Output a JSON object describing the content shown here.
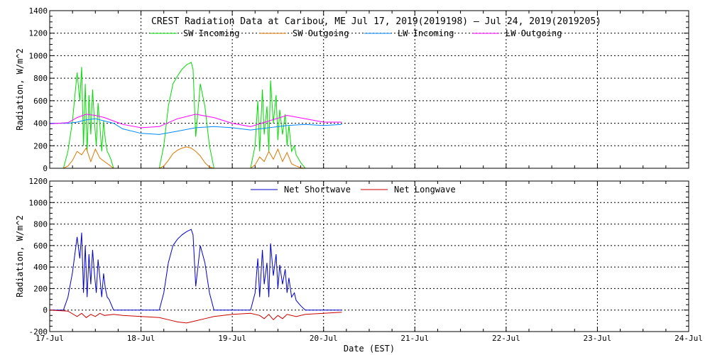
{
  "title": "CREST Radiation Data at Caribou, ME   Jul 17, 2019(2019198) — Jul 24, 2019(2019205)",
  "xlabel": "Date (EST)",
  "chart_data": [
    {
      "type": "line",
      "title": "CREST Radiation Data at Caribou, ME   Jul 17, 2019(2019198) — Jul 24, 2019(2019205)",
      "ylabel": "Radiation, W/m^2",
      "xlim": [
        0,
        7
      ],
      "ylim": [
        0,
        1400
      ],
      "yticks": [
        0,
        200,
        400,
        600,
        800,
        1000,
        1200,
        1400
      ],
      "grid": true,
      "legend": "top",
      "series": [
        {
          "name": "SW Incoming",
          "color": "#00dd00",
          "x": [
            0.0,
            0.15,
            0.2,
            0.25,
            0.3,
            0.33,
            0.35,
            0.37,
            0.39,
            0.41,
            0.43,
            0.45,
            0.47,
            0.49,
            0.51,
            0.53,
            0.55,
            0.57,
            0.59,
            0.61,
            0.63,
            0.65,
            0.67,
            0.7,
            0.75,
            0.8,
            0.85,
            1.0,
            1.2,
            1.25,
            1.3,
            1.35,
            1.4,
            1.45,
            1.5,
            1.55,
            1.57,
            1.6,
            1.65,
            1.7,
            1.75,
            1.8,
            2.0,
            2.2,
            2.25,
            2.28,
            2.3,
            2.33,
            2.35,
            2.38,
            2.4,
            2.42,
            2.45,
            2.48,
            2.5,
            2.52,
            2.55,
            2.58,
            2.6,
            2.62,
            2.65,
            2.68,
            2.7,
            2.75,
            2.8,
            2.85,
            3.0,
            3.2
          ],
          "values": [
            0,
            0,
            150,
            420,
            850,
            600,
            900,
            200,
            750,
            150,
            650,
            300,
            700,
            420,
            200,
            580,
            380,
            150,
            420,
            250,
            150,
            120,
            80,
            0,
            0,
            0,
            0,
            0,
            0,
            200,
            550,
            750,
            820,
            880,
            920,
            940,
            880,
            280,
            750,
            550,
            200,
            0,
            0,
            0,
            200,
            600,
            150,
            700,
            300,
            550,
            150,
            780,
            400,
            650,
            250,
            520,
            300,
            480,
            200,
            380,
            150,
            200,
            120,
            50,
            0,
            0,
            0,
            0
          ]
        },
        {
          "name": "SW Outgoing",
          "color": "#dd7700",
          "x": [
            0.0,
            0.15,
            0.2,
            0.25,
            0.3,
            0.35,
            0.4,
            0.45,
            0.5,
            0.55,
            0.6,
            0.65,
            0.7,
            1.0,
            1.2,
            1.25,
            1.3,
            1.35,
            1.4,
            1.45,
            1.5,
            1.55,
            1.6,
            1.65,
            1.7,
            1.75,
            1.8,
            2.0,
            2.2,
            2.25,
            2.3,
            2.35,
            2.4,
            2.45,
            2.5,
            2.55,
            2.6,
            2.65,
            2.7,
            2.75,
            2.8,
            3.2
          ],
          "values": [
            0,
            0,
            20,
            70,
            150,
            120,
            180,
            60,
            170,
            90,
            60,
            30,
            0,
            0,
            0,
            20,
            70,
            130,
            160,
            180,
            190,
            180,
            150,
            110,
            50,
            10,
            0,
            0,
            0,
            30,
            100,
            60,
            150,
            80,
            170,
            60,
            140,
            40,
            20,
            5,
            0,
            0
          ]
        },
        {
          "name": "LW Incoming",
          "color": "#0088ff",
          "x": [
            0.0,
            0.2,
            0.3,
            0.4,
            0.5,
            0.6,
            0.7,
            0.8,
            1.0,
            1.2,
            1.4,
            1.6,
            1.8,
            2.0,
            2.2,
            2.4,
            2.6,
            2.8,
            3.0,
            3.2
          ],
          "values": [
            400,
            400,
            410,
            430,
            440,
            420,
            400,
            350,
            310,
            300,
            330,
            360,
            370,
            360,
            340,
            360,
            380,
            390,
            380,
            390
          ]
        },
        {
          "name": "LW Outgoing",
          "color": "#ff00ff",
          "x": [
            0.0,
            0.2,
            0.3,
            0.4,
            0.5,
            0.6,
            0.7,
            0.8,
            1.0,
            1.2,
            1.4,
            1.6,
            1.8,
            2.0,
            2.2,
            2.4,
            2.6,
            2.8,
            3.0,
            3.2
          ],
          "values": [
            395,
            405,
            450,
            480,
            470,
            450,
            420,
            390,
            360,
            370,
            440,
            480,
            450,
            400,
            370,
            420,
            470,
            440,
            410,
            410
          ]
        }
      ]
    },
    {
      "type": "line",
      "ylabel": "Radiation, W/m^2",
      "xlabel": "Date (EST)",
      "xlim": [
        0,
        7
      ],
      "ylim": [
        -200,
        1200
      ],
      "yticks": [
        -200,
        0,
        200,
        400,
        600,
        800,
        1000,
        1200
      ],
      "xticks": [
        "17-Jul",
        "18-Jul",
        "19-Jul",
        "20-Jul",
        "21-Jul",
        "22-Jul",
        "23-Jul",
        "24-Jul"
      ],
      "grid": true,
      "legend": "top",
      "series": [
        {
          "name": "Net Shortwave",
          "color": "#0000cc",
          "x": [
            0.0,
            0.15,
            0.2,
            0.25,
            0.3,
            0.33,
            0.35,
            0.37,
            0.39,
            0.41,
            0.43,
            0.45,
            0.47,
            0.49,
            0.51,
            0.53,
            0.55,
            0.57,
            0.59,
            0.61,
            0.63,
            0.65,
            0.67,
            0.7,
            0.75,
            0.8,
            1.0,
            1.2,
            1.25,
            1.3,
            1.35,
            1.4,
            1.45,
            1.5,
            1.55,
            1.57,
            1.6,
            1.65,
            1.7,
            1.75,
            1.8,
            2.0,
            2.2,
            2.25,
            2.28,
            2.3,
            2.33,
            2.35,
            2.38,
            2.4,
            2.42,
            2.45,
            2.48,
            2.5,
            2.52,
            2.55,
            2.58,
            2.6,
            2.62,
            2.65,
            2.68,
            2.7,
            2.75,
            2.8,
            3.0,
            3.2
          ],
          "values": [
            0,
            0,
            120,
            350,
            680,
            480,
            720,
            160,
            600,
            120,
            520,
            240,
            560,
            340,
            160,
            470,
            300,
            120,
            340,
            200,
            120,
            100,
            60,
            0,
            0,
            0,
            0,
            0,
            160,
            440,
            600,
            660,
            700,
            730,
            750,
            700,
            220,
            600,
            440,
            160,
            0,
            0,
            0,
            160,
            480,
            120,
            560,
            240,
            440,
            120,
            620,
            320,
            520,
            200,
            420,
            240,
            380,
            160,
            300,
            120,
            160,
            90,
            40,
            0,
            0,
            0
          ]
        },
        {
          "name": "Net Longwave",
          "color": "#cc0000",
          "x": [
            0.0,
            0.2,
            0.3,
            0.35,
            0.4,
            0.45,
            0.5,
            0.55,
            0.6,
            0.7,
            0.8,
            1.0,
            1.2,
            1.3,
            1.4,
            1.5,
            1.6,
            1.7,
            1.8,
            2.0,
            2.2,
            2.3,
            2.35,
            2.4,
            2.45,
            2.5,
            2.55,
            2.6,
            2.7,
            2.8,
            3.0,
            3.2
          ],
          "values": [
            0,
            -10,
            -60,
            -30,
            -70,
            -40,
            -60,
            -30,
            -50,
            -40,
            -50,
            -60,
            -70,
            -90,
            -110,
            -120,
            -100,
            -80,
            -60,
            -40,
            -30,
            -50,
            -80,
            -40,
            -90,
            -50,
            -80,
            -40,
            -60,
            -40,
            -30,
            -20
          ]
        }
      ]
    }
  ]
}
